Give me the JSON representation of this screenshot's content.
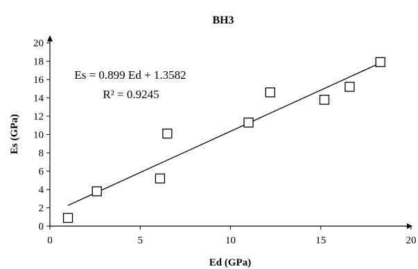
{
  "chart_data": {
    "type": "scatter",
    "title": "BH3",
    "xlabel": "Ed (GPa)",
    "ylabel": "Es (GPa)",
    "xlim": [
      0,
      20
    ],
    "ylim": [
      0,
      20
    ],
    "x_ticks": [
      "0",
      "5",
      "10",
      "15",
      "20"
    ],
    "y_ticks": [
      "0",
      "2",
      "4",
      "6",
      "8",
      "10",
      "12",
      "14",
      "16",
      "18",
      "20"
    ],
    "grid": false,
    "marker": "open-square",
    "series": [
      {
        "points": [
          {
            "x": 1.0,
            "y": 0.9
          },
          {
            "x": 2.6,
            "y": 3.8
          },
          {
            "x": 6.1,
            "y": 5.2
          },
          {
            "x": 6.5,
            "y": 10.1
          },
          {
            "x": 11.0,
            "y": 11.3
          },
          {
            "x": 12.2,
            "y": 14.6
          },
          {
            "x": 15.2,
            "y": 13.8
          },
          {
            "x": 16.6,
            "y": 15.2
          },
          {
            "x": 18.3,
            "y": 17.9
          }
        ]
      }
    ],
    "trendline": {
      "slope": 0.899,
      "intercept": 1.3582,
      "x_range": [
        1.0,
        18.3
      ],
      "equation": "Es = 0.899 Ed + 1.3582",
      "r2_label": "R² = 0.9245"
    }
  }
}
